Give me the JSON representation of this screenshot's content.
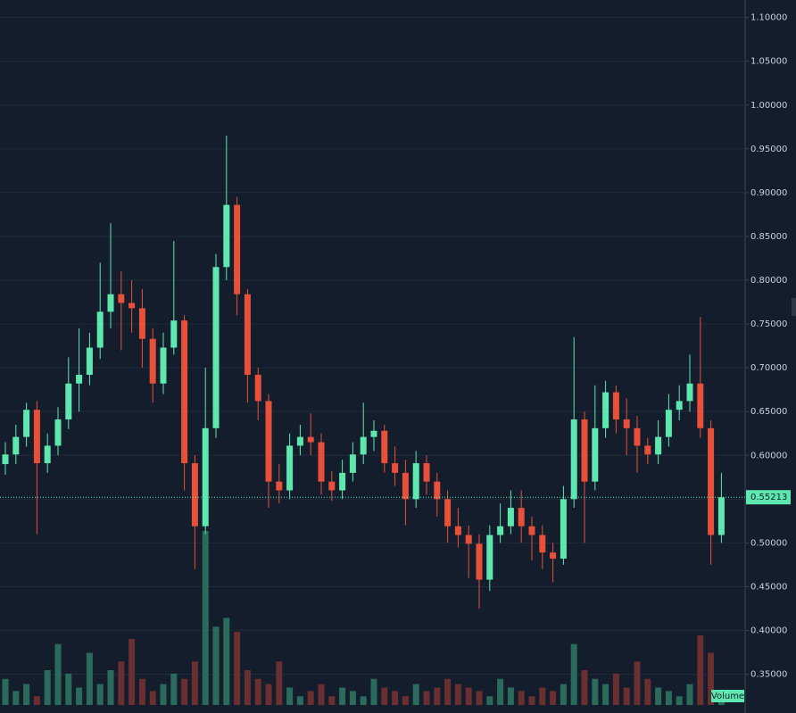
{
  "chart_data": {
    "type": "candlestick",
    "open": [
      0.59,
      0.601,
      0.621,
      0.652,
      0.591,
      0.611,
      0.641,
      0.682,
      0.692,
      0.723,
      0.764,
      0.784,
      0.774,
      0.768,
      0.733,
      0.682,
      0.723,
      0.754,
      0.591,
      0.519,
      0.631,
      0.815,
      0.886,
      0.784,
      0.692,
      0.662,
      0.57,
      0.56,
      0.611,
      0.621,
      0.615,
      0.57,
      0.56,
      0.58,
      0.601,
      0.621,
      0.628,
      0.591,
      0.58,
      0.55,
      0.591,
      0.57,
      0.55,
      0.519,
      0.509,
      0.499,
      0.458,
      0.509,
      0.519,
      0.54,
      0.519,
      0.509,
      0.489,
      0.482,
      0.55,
      0.641,
      0.57,
      0.631,
      0.672,
      0.641,
      0.631,
      0.611,
      0.601,
      0.621,
      0.652,
      0.662,
      0.682,
      0.631,
      0.509
    ],
    "high": [
      0.615,
      0.635,
      0.66,
      0.662,
      0.625,
      0.655,
      0.712,
      0.745,
      0.74,
      0.82,
      0.865,
      0.81,
      0.8,
      0.79,
      0.745,
      0.74,
      0.845,
      0.76,
      0.6,
      0.7,
      0.83,
      0.965,
      0.895,
      0.79,
      0.7,
      0.67,
      0.59,
      0.625,
      0.635,
      0.648,
      0.625,
      0.582,
      0.595,
      0.615,
      0.66,
      0.64,
      0.635,
      0.61,
      0.595,
      0.605,
      0.6,
      0.58,
      0.56,
      0.54,
      0.52,
      0.51,
      0.52,
      0.545,
      0.56,
      0.56,
      0.53,
      0.52,
      0.5,
      0.565,
      0.735,
      0.65,
      0.68,
      0.685,
      0.68,
      0.665,
      0.645,
      0.62,
      0.64,
      0.67,
      0.68,
      0.715,
      0.758,
      0.64,
      0.58
    ],
    "low": [
      0.578,
      0.59,
      0.61,
      0.51,
      0.58,
      0.6,
      0.63,
      0.65,
      0.68,
      0.71,
      0.745,
      0.72,
      0.74,
      0.7,
      0.66,
      0.67,
      0.715,
      0.56,
      0.47,
      0.51,
      0.62,
      0.8,
      0.76,
      0.66,
      0.64,
      0.54,
      0.545,
      0.55,
      0.6,
      0.6,
      0.555,
      0.548,
      0.55,
      0.57,
      0.59,
      0.605,
      0.58,
      0.565,
      0.52,
      0.54,
      0.555,
      0.53,
      0.5,
      0.495,
      0.46,
      0.425,
      0.445,
      0.5,
      0.51,
      0.5,
      0.48,
      0.47,
      0.455,
      0.475,
      0.54,
      0.5,
      0.56,
      0.62,
      0.625,
      0.6,
      0.58,
      0.59,
      0.59,
      0.61,
      0.64,
      0.65,
      0.62,
      0.475,
      0.5
    ],
    "close": [
      0.601,
      0.621,
      0.652,
      0.591,
      0.611,
      0.641,
      0.682,
      0.692,
      0.723,
      0.764,
      0.784,
      0.774,
      0.768,
      0.733,
      0.682,
      0.723,
      0.754,
      0.591,
      0.519,
      0.631,
      0.815,
      0.886,
      0.784,
      0.692,
      0.662,
      0.57,
      0.56,
      0.611,
      0.621,
      0.615,
      0.57,
      0.56,
      0.58,
      0.601,
      0.621,
      0.628,
      0.591,
      0.58,
      0.55,
      0.591,
      0.57,
      0.55,
      0.519,
      0.509,
      0.499,
      0.458,
      0.509,
      0.519,
      0.54,
      0.519,
      0.509,
      0.489,
      0.482,
      0.55,
      0.641,
      0.57,
      0.631,
      0.672,
      0.641,
      0.631,
      0.611,
      0.601,
      0.621,
      0.652,
      0.662,
      0.682,
      0.631,
      0.509,
      0.552
    ],
    "volume": [
      15,
      8,
      12,
      5,
      20,
      35,
      18,
      10,
      30,
      12,
      20,
      25,
      38,
      15,
      8,
      12,
      18,
      15,
      25,
      100,
      45,
      50,
      42,
      20,
      15,
      12,
      25,
      10,
      5,
      8,
      12,
      5,
      10,
      8,
      5,
      15,
      10,
      8,
      5,
      12,
      8,
      10,
      15,
      12,
      10,
      8,
      5,
      15,
      10,
      8,
      5,
      10,
      8,
      12,
      35,
      20,
      15,
      12,
      18,
      10,
      25,
      15,
      10,
      8,
      5,
      12,
      40,
      30,
      8
    ],
    "volume_label": "Volume",
    "last_price": 0.55213,
    "up_color": "#5ee8b0",
    "down_color": "#e8503a",
    "volume_up_color": "#2b6b5c",
    "volume_down_color": "#6a2f31",
    "ylim": [
      0.32,
      1.12
    ],
    "yticks": [
      {
        "value": 0.35,
        "label": "0.35000"
      },
      {
        "value": 0.4,
        "label": "0.40000"
      },
      {
        "value": 0.45,
        "label": "0.45000"
      },
      {
        "value": 0.5,
        "label": "0.50000"
      },
      {
        "value": 0.55,
        "label": "0.55000"
      },
      {
        "value": 0.6,
        "label": "0.60000"
      },
      {
        "value": 0.65,
        "label": "0.65000"
      },
      {
        "value": 0.7,
        "label": "0.70000"
      },
      {
        "value": 0.75,
        "label": "0.75000"
      },
      {
        "value": 0.8,
        "label": "0.80000"
      },
      {
        "value": 0.85,
        "label": "0.85000"
      },
      {
        "value": 0.9,
        "label": "0.90000"
      },
      {
        "value": 0.95,
        "label": "0.95000"
      },
      {
        "value": 1.0,
        "label": "1.00000"
      },
      {
        "value": 1.05,
        "label": "1.05000"
      },
      {
        "value": 1.1,
        "label": "1.10000"
      }
    ],
    "grid": true
  }
}
